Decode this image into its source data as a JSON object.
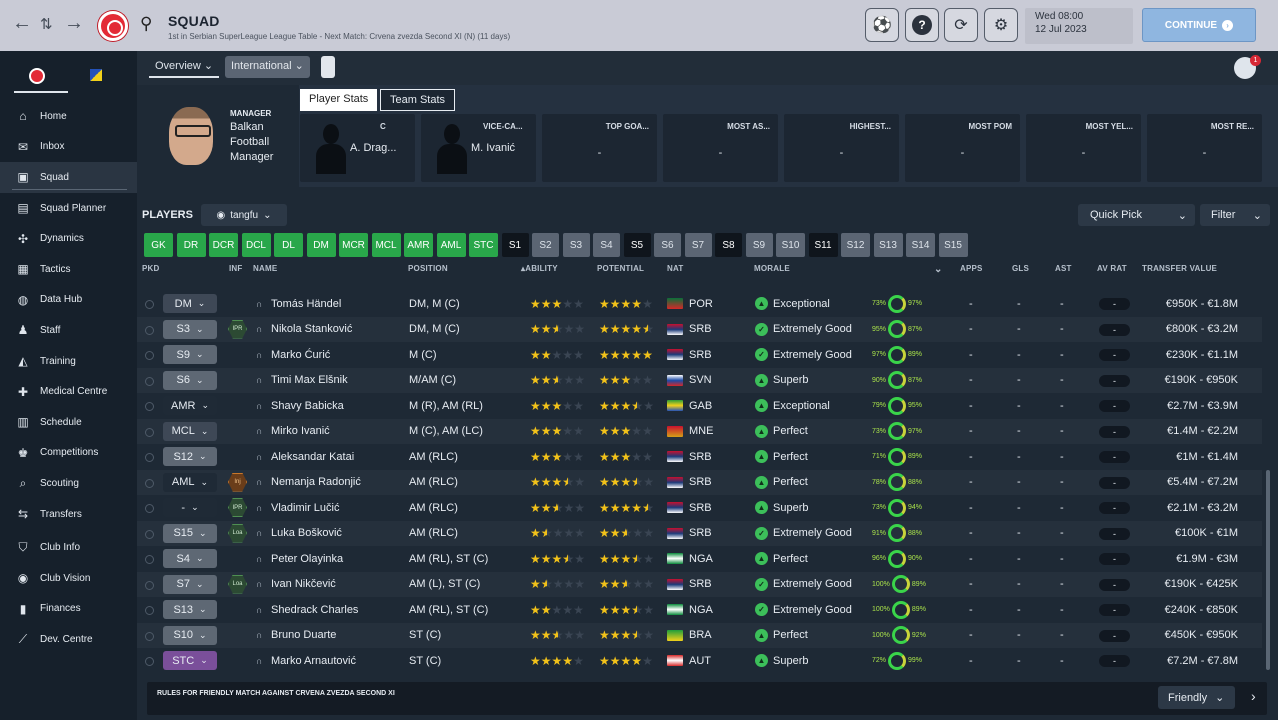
{
  "header": {
    "title": "SQUAD",
    "subtitle": "1st in Serbian SuperLeague League Table - Next Match: Crvena zvezda Second XI (N) (11 days)",
    "date_line1": "Wed 08:00",
    "date_line2": "12 Jul 2023",
    "continue_label": "CONTINUE"
  },
  "nav": {
    "items": [
      {
        "label": "Home",
        "icon": "home-icon"
      },
      {
        "label": "Inbox",
        "icon": "inbox-icon"
      },
      {
        "label": "Squad",
        "icon": "shirt-icon"
      },
      {
        "label": "Squad Planner",
        "icon": "clipboard-icon"
      },
      {
        "label": "Dynamics",
        "icon": "dynamics-icon"
      },
      {
        "label": "Tactics",
        "icon": "tactics-icon"
      },
      {
        "label": "Data Hub",
        "icon": "data-hub-icon"
      },
      {
        "label": "Staff",
        "icon": "staff-icon"
      },
      {
        "label": "Training",
        "icon": "training-icon"
      },
      {
        "label": "Medical Centre",
        "icon": "medical-icon"
      },
      {
        "label": "Schedule",
        "icon": "calendar-icon"
      },
      {
        "label": "Competitions",
        "icon": "trophy-icon"
      },
      {
        "label": "Scouting",
        "icon": "scouting-icon"
      },
      {
        "label": "Transfers",
        "icon": "transfers-icon"
      },
      {
        "label": "Club Info",
        "icon": "shield-icon"
      },
      {
        "label": "Club Vision",
        "icon": "vision-icon"
      },
      {
        "label": "Finances",
        "icon": "finances-icon"
      },
      {
        "label": "Dev. Centre",
        "icon": "dev-centre-icon"
      }
    ]
  },
  "subnav": {
    "overview": "Overview",
    "international": "International"
  },
  "manager": {
    "role": "MANAGER",
    "name": "Balkan Football Manager"
  },
  "stats": {
    "tab_player": "Player Stats",
    "tab_team": "Team Stats",
    "cards": [
      {
        "title": "C",
        "value": "A. Drag..."
      },
      {
        "title": "VICE-CA...",
        "value": "M. Ivanić"
      },
      {
        "title": "TOP GOA...",
        "value": "-"
      },
      {
        "title": "MOST AS...",
        "value": "-"
      },
      {
        "title": "HIGHEST...",
        "value": "-"
      },
      {
        "title": "MOST POM",
        "value": "-"
      },
      {
        "title": "MOST YEL...",
        "value": "-"
      },
      {
        "title": "MOST RE...",
        "value": "-"
      }
    ]
  },
  "players": {
    "label": "PLAYERS",
    "view": "tangfu",
    "quick_pick": "Quick Pick",
    "filter": "Filter"
  },
  "chips": [
    {
      "label": "GK",
      "style": "green"
    },
    {
      "label": "DR",
      "style": "green"
    },
    {
      "label": "DCR",
      "style": "green"
    },
    {
      "label": "DCL",
      "style": "green"
    },
    {
      "label": "DL",
      "style": "green"
    },
    {
      "label": "DM",
      "style": "green"
    },
    {
      "label": "MCR",
      "style": "green"
    },
    {
      "label": "MCL",
      "style": "green"
    },
    {
      "label": "AMR",
      "style": "green"
    },
    {
      "label": "AML",
      "style": "green"
    },
    {
      "label": "STC",
      "style": "green"
    },
    {
      "label": "S1",
      "style": "dark"
    },
    {
      "label": "S2",
      "style": "grey"
    },
    {
      "label": "S3",
      "style": "grey"
    },
    {
      "label": "S4",
      "style": "grey"
    },
    {
      "label": "S5",
      "style": "dark"
    },
    {
      "label": "S6",
      "style": "grey"
    },
    {
      "label": "S7",
      "style": "grey"
    },
    {
      "label": "S8",
      "style": "dark"
    },
    {
      "label": "S9",
      "style": "grey"
    },
    {
      "label": "S10",
      "style": "grey"
    },
    {
      "label": "S11",
      "style": "dark"
    },
    {
      "label": "S12",
      "style": "grey"
    },
    {
      "label": "S13",
      "style": "grey"
    },
    {
      "label": "S14",
      "style": "grey"
    },
    {
      "label": "S15",
      "style": "grey"
    }
  ],
  "columns": {
    "pkd": "PKD",
    "inf": "INF",
    "name": "NAME",
    "position": "POSITION",
    "ability": "ABILITY",
    "potential": "POTENTIAL",
    "nat": "NAT",
    "morale": "MORALE",
    "apps": "APPS",
    "gls": "GLS",
    "ast": "AST",
    "av_rat": "AV RAT",
    "transfer_value": "TRANSFER VALUE"
  },
  "rows": [
    {
      "pk": "DM",
      "pkc": "#3e4856",
      "inf": "",
      "name": "Tomás Händel",
      "pos": "DM, M (C)",
      "ab": 3,
      "pot": 4,
      "nat": "POR",
      "flag": [
        "#0a6f3a",
        "#d62828"
      ],
      "morale": "Exceptional",
      "mi": "▲",
      "fit": "73%",
      "sharp": "97%",
      "value": "€950K - €1.8M"
    },
    {
      "pk": "S3",
      "pkc": "#5e6874",
      "inf": "IPR",
      "name": "Nikola Stanković",
      "pos": "DM, M (C)",
      "ab": 2.5,
      "pot": 4.5,
      "nat": "SRB",
      "flag": [
        "#c8102e",
        "#1b3a7a",
        "#ffffff"
      ],
      "morale": "Extremely Good",
      "mi": "✓",
      "fit": "95%",
      "sharp": "87%",
      "value": "€800K - €3.2M"
    },
    {
      "pk": "S9",
      "pkc": "#5e6874",
      "inf": "",
      "name": "Marko Ćurić",
      "pos": "M (C)",
      "ab": 2,
      "pot": 5,
      "nat": "SRB",
      "flag": [
        "#c8102e",
        "#1b3a7a",
        "#ffffff"
      ],
      "morale": "Extremely Good",
      "mi": "✓",
      "fit": "97%",
      "sharp": "89%",
      "value": "€230K - €1.1M"
    },
    {
      "pk": "S6",
      "pkc": "#5e6874",
      "inf": "",
      "name": "Timi Max Elšnik",
      "pos": "M/AM (C)",
      "ab": 2.5,
      "pot": 3,
      "nat": "SVN",
      "flag": [
        "#ffffff",
        "#1b4aa8",
        "#d62828"
      ],
      "morale": "Superb",
      "mi": "▲",
      "fit": "90%",
      "sharp": "87%",
      "value": "€190K - €950K"
    },
    {
      "pk": "AMR",
      "pkc": "#1f2a36",
      "inf": "",
      "name": "Shavy Babicka",
      "pos": "M (R), AM (RL)",
      "ab": 3,
      "pot": 3.5,
      "nat": "GAB",
      "flag": [
        "#2a9d3a",
        "#f2d11a",
        "#2452b8"
      ],
      "morale": "Exceptional",
      "mi": "▲",
      "fit": "79%",
      "sharp": "95%",
      "value": "€2.7M - €3.9M"
    },
    {
      "pk": "MCL",
      "pkc": "#3e4856",
      "inf": "",
      "name": "Mirko Ivanić",
      "pos": "M (C), AM (LC)",
      "ab": 3,
      "pot": 3,
      "nat": "MNE",
      "flag": [
        "#c8102e",
        "#d4a017"
      ],
      "morale": "Perfect",
      "mi": "▲",
      "fit": "73%",
      "sharp": "97%",
      "value": "€1.4M - €2.2M"
    },
    {
      "pk": "S12",
      "pkc": "#5e6874",
      "inf": "",
      "name": "Aleksandar Katai",
      "pos": "AM (RLC)",
      "ab": 3,
      "pot": 3,
      "nat": "SRB",
      "flag": [
        "#c8102e",
        "#1b3a7a",
        "#ffffff"
      ],
      "morale": "Perfect",
      "mi": "▲",
      "fit": "71%",
      "sharp": "89%",
      "value": "€1M - €1.4M"
    },
    {
      "pk": "AML",
      "pkc": "#1f2a36",
      "inf": "Inj",
      "name": "Nemanja Radonjić",
      "pos": "AM (RLC)",
      "ab": 3.5,
      "pot": 3.5,
      "nat": "SRB",
      "flag": [
        "#c8102e",
        "#1b3a7a",
        "#ffffff"
      ],
      "morale": "Perfect",
      "mi": "▲",
      "fit": "78%",
      "sharp": "88%",
      "value": "€5.4M - €7.2M"
    },
    {
      "pk": "-",
      "pkc": "#1f2a36",
      "inf": "IPR",
      "name": "Vladimir Lučić",
      "pos": "AM (RLC)",
      "ab": 2.5,
      "pot": 4.5,
      "nat": "SRB",
      "flag": [
        "#c8102e",
        "#1b3a7a",
        "#ffffff"
      ],
      "morale": "Superb",
      "mi": "▲",
      "fit": "73%",
      "sharp": "94%",
      "value": "€2.1M - €3.2M"
    },
    {
      "pk": "S15",
      "pkc": "#5e6874",
      "inf": "Loa",
      "name": "Luka Bošković",
      "pos": "AM (RLC)",
      "ab": 1.5,
      "pot": 2.5,
      "nat": "SRB",
      "flag": [
        "#c8102e",
        "#1b3a7a",
        "#ffffff"
      ],
      "morale": "Extremely Good",
      "mi": "✓",
      "fit": "91%",
      "sharp": "88%",
      "value": "€100K - €1M"
    },
    {
      "pk": "S4",
      "pkc": "#5e6874",
      "inf": "",
      "name": "Peter Olayinka",
      "pos": "AM (RL), ST (C)",
      "ab": 3.5,
      "pot": 3.5,
      "nat": "NGA",
      "flag": [
        "#0a8a3a",
        "#ffffff",
        "#0a8a3a"
      ],
      "morale": "Perfect",
      "mi": "▲",
      "fit": "96%",
      "sharp": "90%",
      "value": "€1.9M - €3M"
    },
    {
      "pk": "S7",
      "pkc": "#5e6874",
      "inf": "Loa",
      "name": "Ivan Nikčević",
      "pos": "AM (L), ST (C)",
      "ab": 1.5,
      "pot": 2.5,
      "nat": "SRB",
      "flag": [
        "#c8102e",
        "#1b3a7a",
        "#ffffff"
      ],
      "morale": "Extremely Good",
      "mi": "✓",
      "fit": "100%",
      "sharp": "89%",
      "value": "€190K - €425K"
    },
    {
      "pk": "S13",
      "pkc": "#5e6874",
      "inf": "",
      "name": "Shedrack Charles",
      "pos": "AM (RL), ST (C)",
      "ab": 2,
      "pot": 3.5,
      "nat": "NGA",
      "flag": [
        "#0a8a3a",
        "#ffffff",
        "#0a8a3a"
      ],
      "morale": "Extremely Good",
      "mi": "✓",
      "fit": "100%",
      "sharp": "89%",
      "value": "€240K - €850K"
    },
    {
      "pk": "S10",
      "pkc": "#5e6874",
      "inf": "",
      "name": "Bruno Duarte",
      "pos": "ST (C)",
      "ab": 2.5,
      "pot": 3.5,
      "nat": "BRA",
      "flag": [
        "#1e9e3c",
        "#f2d11a"
      ],
      "morale": "Perfect",
      "mi": "▲",
      "fit": "100%",
      "sharp": "92%",
      "value": "€450K - €950K"
    },
    {
      "pk": "STC",
      "pkc": "#7a4f9a",
      "inf": "",
      "name": "Marko Arnautović",
      "pos": "ST (C)",
      "ab": 4,
      "pot": 4,
      "nat": "AUT",
      "flag": [
        "#d62828",
        "#ffffff",
        "#d62828"
      ],
      "morale": "Superb",
      "mi": "▲",
      "fit": "72%",
      "sharp": "99%",
      "value": "€7.2M - €7.8M"
    }
  ],
  "bottom": {
    "text": "RULES FOR FRIENDLY MATCH AGAINST CRVENA ZVEZDA SECOND XI",
    "select": "Friendly"
  },
  "notif_count": "1"
}
